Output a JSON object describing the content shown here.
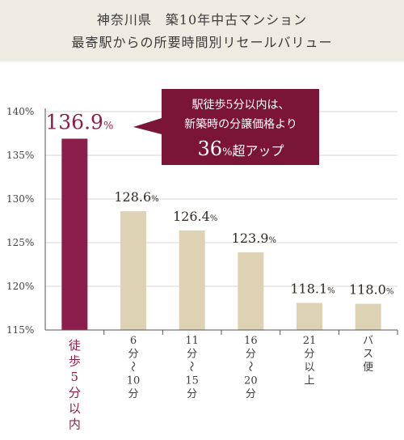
{
  "header": {
    "title_line1": "神奈川県　築10年中古マンション",
    "title_line2": "最寄駅からの所要時間別リセールバリュー"
  },
  "callout": {
    "line1": "駅徒歩5分以内は、",
    "line2": "新築時の分譲価格より",
    "line3_number": "36",
    "line3_unit": "%",
    "line3_suffix": "超アップ"
  },
  "colors": {
    "header_bg": "#eeebe2",
    "highlight_bar": "#8b1e4a",
    "bar_gold": "#ddd2b4",
    "highlight_text": "#8b1e4a",
    "callout_bg": "#7a1538"
  },
  "chart_data": {
    "type": "bar",
    "categories": [
      "徒歩5分以内",
      "6分〜10分",
      "11分〜15分",
      "16分〜20分",
      "21分以上",
      "バス便"
    ],
    "category_lines": [
      [
        "徒",
        "歩",
        "5",
        "分",
        "以",
        "内"
      ],
      [
        "6",
        "分",
        "〜",
        "10",
        "分"
      ],
      [
        "11",
        "分",
        "〜",
        "15",
        "分"
      ],
      [
        "16",
        "分",
        "〜",
        "20",
        "分"
      ],
      [
        "21",
        "分",
        "以",
        "上"
      ],
      [
        "バ",
        "ス",
        "便"
      ]
    ],
    "values": [
      136.9,
      128.6,
      126.4,
      123.9,
      118.1,
      118.0
    ],
    "value_labels": [
      "136.9",
      "128.6",
      "126.4",
      "123.9",
      "118.1",
      "118.0"
    ],
    "value_unit": "%",
    "highlight_index": 0,
    "ylim": [
      115,
      140
    ],
    "y_ticks": [
      140,
      135,
      130,
      125,
      120,
      115
    ],
    "y_tick_unit": "%"
  }
}
